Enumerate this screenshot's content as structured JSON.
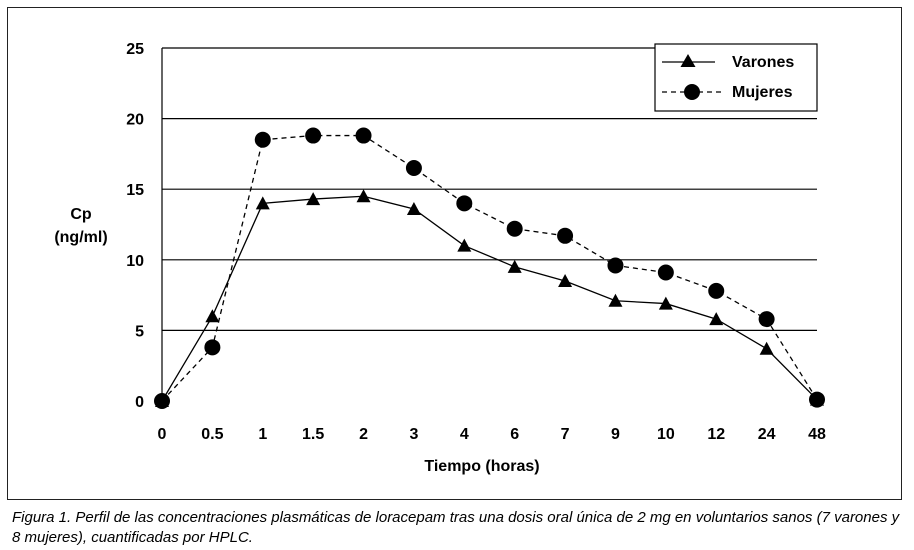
{
  "chart_data": {
    "type": "line",
    "categories": [
      "0",
      "0.5",
      "1",
      "1.5",
      "2",
      "3",
      "4",
      "6",
      "7",
      "9",
      "10",
      "12",
      "24",
      "48"
    ],
    "series": [
      {
        "name": "Varones",
        "marker": "triangle",
        "line": "solid",
        "values": [
          0,
          6.0,
          14.0,
          14.3,
          14.5,
          13.6,
          11.0,
          9.5,
          8.5,
          7.1,
          6.9,
          5.8,
          3.7,
          0.1
        ]
      },
      {
        "name": "Mujeres",
        "marker": "circle",
        "line": "dashed",
        "values": [
          0,
          3.8,
          18.5,
          18.8,
          18.8,
          16.5,
          14.0,
          12.2,
          11.7,
          9.6,
          9.1,
          7.8,
          5.8,
          0.1
        ]
      }
    ],
    "ylabel_line1": "Cp",
    "ylabel_line2": "(ng/ml)",
    "xlabel": "Tiempo (horas)",
    "ylim": [
      0,
      25
    ],
    "yticks": [
      "0",
      "5",
      "10",
      "15",
      "20",
      "25"
    ],
    "grid": "horizontal",
    "legend_position": "top-right",
    "colors": {
      "line": "#000000",
      "background": "#ffffff"
    }
  },
  "caption": "Figura 1. Perfil de las concentraciones plasmáticas de loracepam tras una dosis oral única de 2 mg en voluntarios sanos (7 varones y 8 mujeres), cuantificadas por HPLC."
}
